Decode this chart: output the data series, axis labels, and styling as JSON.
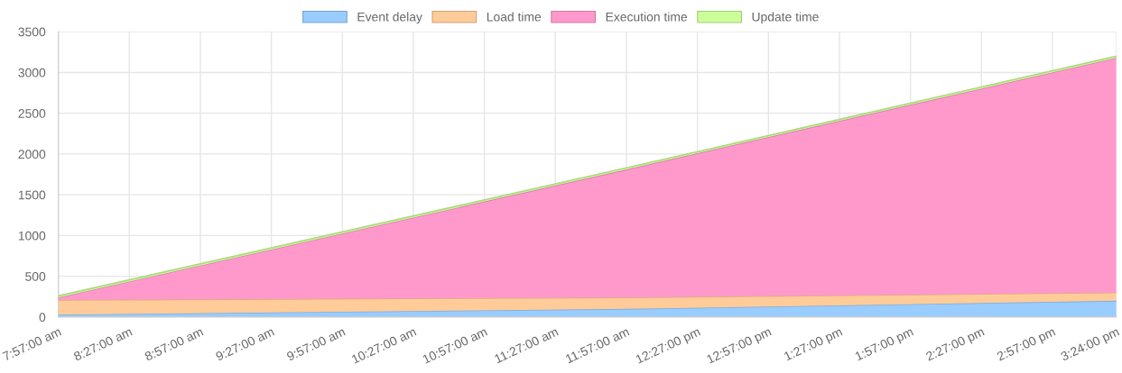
{
  "chart_data": {
    "type": "area",
    "stacked": true,
    "x": [
      7.95,
      11.95,
      15.4
    ],
    "series": [
      {
        "name": "Event delay",
        "color": "#99ccff",
        "values": [
          30,
          100,
          200
        ]
      },
      {
        "name": "Load time",
        "color": "#ffcc99",
        "values": [
          180,
          140,
          100
        ]
      },
      {
        "name": "Execution time",
        "color": "#ff99cc",
        "values": [
          30,
          1570,
          2880
        ]
      },
      {
        "name": "Update time",
        "color": "#ccff99",
        "values": [
          20,
          20,
          20
        ]
      }
    ],
    "xlim": [
      7.95,
      15.4
    ],
    "xticks": [
      {
        "value": 7.95,
        "label": "7:57:00 am"
      },
      {
        "value": 8.45,
        "label": "8:27:00 am"
      },
      {
        "value": 8.95,
        "label": "8:57:00 am"
      },
      {
        "value": 9.45,
        "label": "9:27:00 am"
      },
      {
        "value": 9.95,
        "label": "9:57:00 am"
      },
      {
        "value": 10.45,
        "label": "10:27:00 am"
      },
      {
        "value": 10.95,
        "label": "10:57:00 am"
      },
      {
        "value": 11.45,
        "label": "11:27:00 am"
      },
      {
        "value": 11.95,
        "label": "11:57:00 am"
      },
      {
        "value": 12.45,
        "label": "12:27:00 pm"
      },
      {
        "value": 12.95,
        "label": "12:57:00 pm"
      },
      {
        "value": 13.45,
        "label": "1:27:00 pm"
      },
      {
        "value": 13.95,
        "label": "1:57:00 pm"
      },
      {
        "value": 14.45,
        "label": "2:27:00 pm"
      },
      {
        "value": 14.95,
        "label": "2:57:00 pm"
      },
      {
        "value": 15.4,
        "label": "3:24:00 pm"
      }
    ],
    "ylim": [
      0,
      3500
    ],
    "yticks": [
      0,
      500,
      1000,
      1500,
      2000,
      2500,
      3000,
      3500
    ],
    "grid": true,
    "legend": "top"
  }
}
